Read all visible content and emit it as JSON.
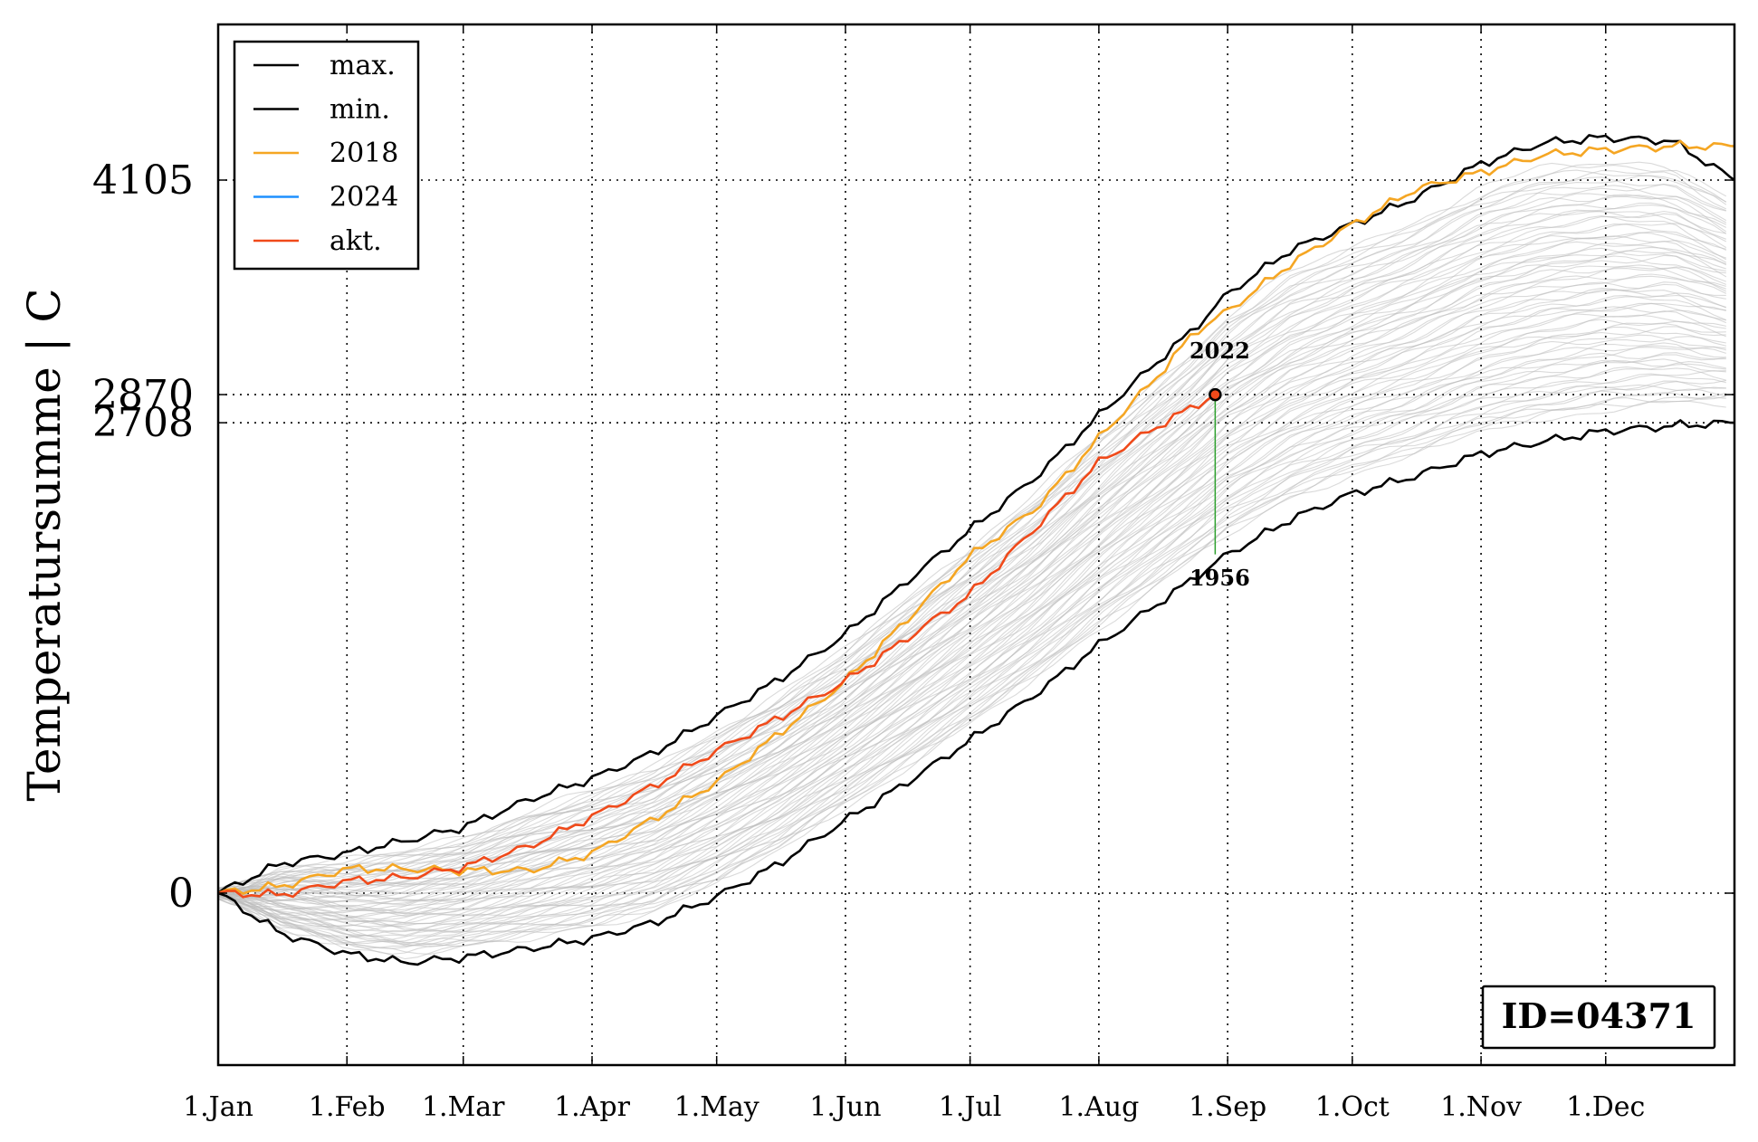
{
  "chart_data": {
    "type": "line",
    "title": "",
    "xlabel": "",
    "ylabel": "Temperatursumme | C",
    "x_ticks": [
      "1.Jan",
      "1.Feb",
      "1.Mar",
      "1.Apr",
      "1.May",
      "1.Jun",
      "1.Jul",
      "1.Aug",
      "1.Sep",
      "1.Oct",
      "1.Nov",
      "1.Dec"
    ],
    "x_tick_days": [
      0,
      31,
      59,
      90,
      120,
      151,
      181,
      212,
      243,
      273,
      304,
      334
    ],
    "x_range_days": [
      0,
      365
    ],
    "y_ticks": [
      0,
      2708,
      2870,
      4105
    ],
    "y_tick_labels": [
      "0",
      "2708",
      "2870",
      "4105"
    ],
    "ylim": [
      -1000,
      5000
    ],
    "grid": true,
    "legend_position": "top-left",
    "legend": [
      {
        "label": "max.",
        "color": "#000000"
      },
      {
        "label": "min.",
        "color": "#000000"
      },
      {
        "label": "2018",
        "color": "#f5a623"
      },
      {
        "label": "2024",
        "color": "#1e90ff"
      },
      {
        "label": "akt.",
        "color": "#f04a1a"
      }
    ],
    "series": [
      {
        "name": "max.",
        "color": "#000000",
        "x": [
          0,
          15,
          31,
          45,
          59,
          75,
          90,
          105,
          120,
          135,
          151,
          166,
          181,
          197,
          212,
          227,
          235,
          243,
          258,
          273,
          288,
          304,
          319,
          334,
          350,
          365
        ],
        "y": [
          0,
          170,
          230,
          300,
          380,
          540,
          660,
          810,
          1020,
          1230,
          1490,
          1800,
          2090,
          2400,
          2750,
          3080,
          3250,
          3450,
          3700,
          3850,
          4000,
          4200,
          4320,
          4350,
          4330,
          4105
        ]
      },
      {
        "name": "min.",
        "color": "#000000",
        "x": [
          0,
          15,
          31,
          45,
          59,
          75,
          90,
          105,
          120,
          135,
          151,
          166,
          181,
          197,
          212,
          227,
          243,
          258,
          273,
          288,
          304,
          319,
          334,
          350,
          365
        ],
        "y": [
          0,
          -230,
          -350,
          -400,
          -370,
          -320,
          -260,
          -170,
          -20,
          170,
          420,
          640,
          880,
          1150,
          1430,
          1680,
          1950,
          2150,
          2300,
          2400,
          2530,
          2600,
          2660,
          2690,
          2708
        ]
      },
      {
        "name": "2018",
        "color": "#f5a623",
        "x": [
          0,
          15,
          31,
          45,
          59,
          75,
          90,
          105,
          120,
          135,
          151,
          166,
          181,
          197,
          212,
          227,
          235,
          243,
          258,
          273,
          288,
          304,
          319,
          334,
          350,
          365
        ],
        "y": [
          0,
          40,
          140,
          140,
          130,
          130,
          230,
          430,
          640,
          920,
          1220,
          1580,
          1940,
          2220,
          2620,
          3000,
          3230,
          3350,
          3620,
          3850,
          4050,
          4150,
          4250,
          4280,
          4300,
          4300
        ]
      },
      {
        "name": "2024",
        "color": "#1e90ff",
        "x": [],
        "y": []
      },
      {
        "name": "akt.",
        "color": "#f04a1a",
        "x": [
          0,
          15,
          31,
          45,
          59,
          75,
          90,
          105,
          120,
          135,
          151,
          166,
          181,
          197,
          212,
          227,
          240
        ],
        "y": [
          0,
          -10,
          70,
          90,
          150,
          270,
          440,
          620,
          820,
          1010,
          1220,
          1470,
          1720,
          2110,
          2480,
          2700,
          2870
        ]
      }
    ],
    "marker": {
      "x": 240,
      "y": 2870
    },
    "annotations": [
      {
        "text": "2022",
        "x": 240,
        "y": 3080
      },
      {
        "text": "1956",
        "x": 240,
        "y": 1770
      }
    ],
    "range_line": {
      "x": 240,
      "y_from": 2870,
      "y_to": 1950,
      "color": "#2ca02c"
    },
    "id_box": "ID=04371",
    "background_color": "#bbbbbb"
  }
}
